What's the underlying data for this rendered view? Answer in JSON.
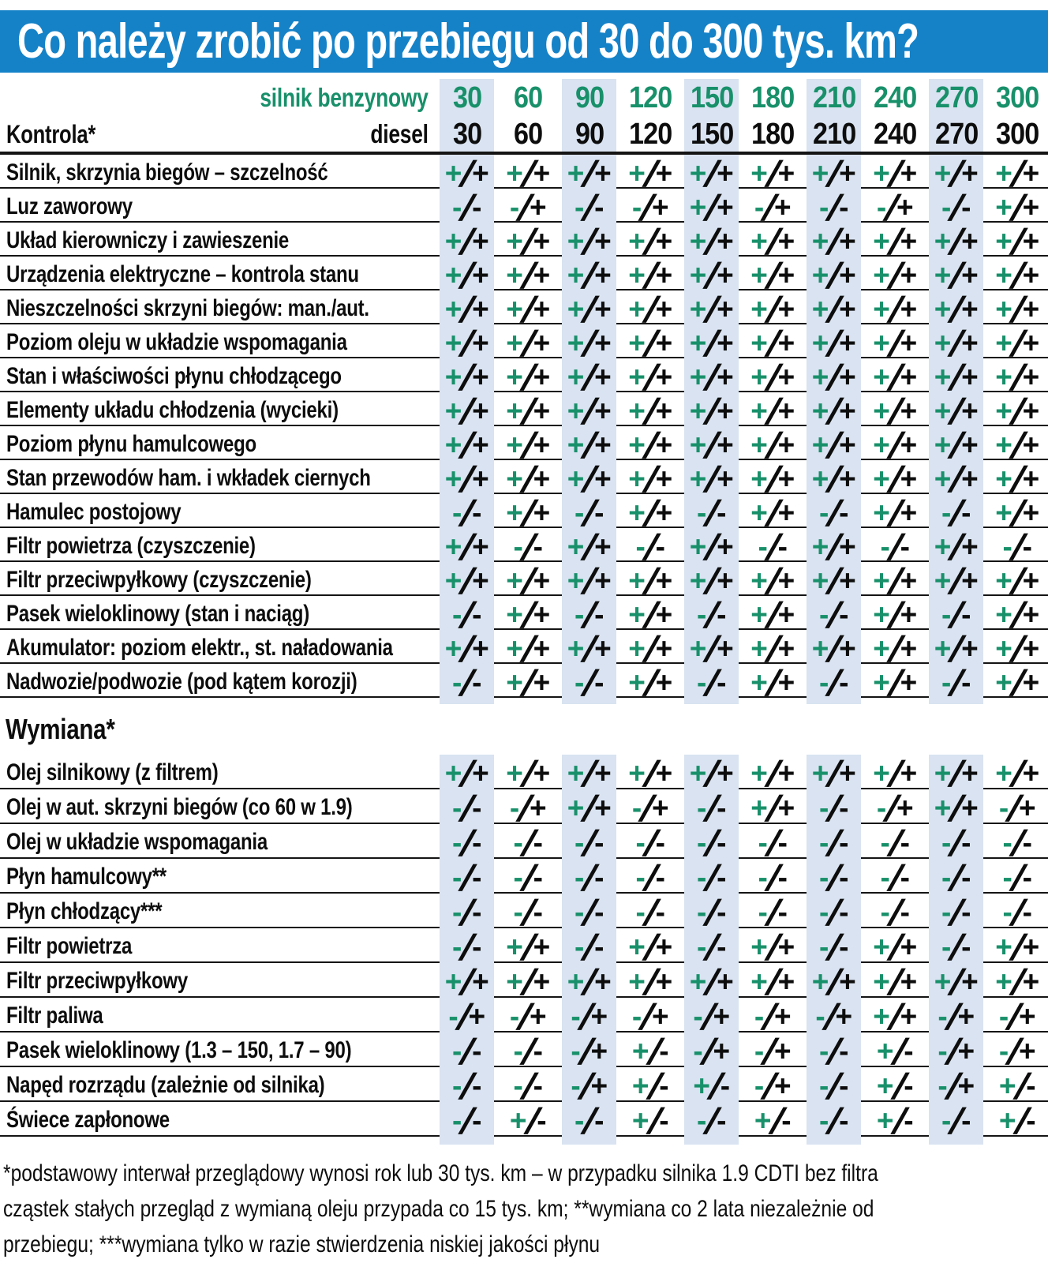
{
  "title": "Co należy zrobić po przebiegu od 30 do 300 tys. km?",
  "header": {
    "petrol_label": "silnik benzynowy",
    "diesel_label": "diesel",
    "kontrola_label": "Kontrola*",
    "mileages": [
      "30",
      "60",
      "90",
      "120",
      "150",
      "180",
      "210",
      "240",
      "270",
      "300"
    ]
  },
  "colors": {
    "title_bar": "#1582c8",
    "green": "#18906a",
    "stripe": "#d9e3f1",
    "line": "#141414",
    "text": "#0d0d0d"
  },
  "sections": {
    "kontrola": {
      "rows": [
        {
          "label": "Silnik, skrzynia biegów – szczelność",
          "values": [
            "+/+",
            "+/+",
            "+/+",
            "+/+",
            "+/+",
            "+/+",
            "+/+",
            "+/+",
            "+/+",
            "+/+"
          ]
        },
        {
          "label": "Luz zaworowy",
          "values": [
            "-/-",
            "-/+",
            "-/-",
            "-/+",
            "+/+",
            "-/+",
            "-/-",
            "-/+",
            "-/-",
            "+/+"
          ]
        },
        {
          "label": "Układ kierowniczy i zawieszenie",
          "values": [
            "+/+",
            "+/+",
            "+/+",
            "+/+",
            "+/+",
            "+/+",
            "+/+",
            "+/+",
            "+/+",
            "+/+"
          ]
        },
        {
          "label": "Urządzenia elektryczne – kontrola stanu",
          "values": [
            "+/+",
            "+/+",
            "+/+",
            "+/+",
            "+/+",
            "+/+",
            "+/+",
            "+/+",
            "+/+",
            "+/+"
          ]
        },
        {
          "label": "Nieszczelności skrzyni biegów: man./aut.",
          "values": [
            "+/+",
            "+/+",
            "+/+",
            "+/+",
            "+/+",
            "+/+",
            "+/+",
            "+/+",
            "+/+",
            "+/+"
          ]
        },
        {
          "label": "Poziom oleju w układzie wspomagania",
          "values": [
            "+/+",
            "+/+",
            "+/+",
            "+/+",
            "+/+",
            "+/+",
            "+/+",
            "+/+",
            "+/+",
            "+/+"
          ]
        },
        {
          "label": "Stan i właściwości płynu chłodzącego",
          "values": [
            "+/+",
            "+/+",
            "+/+",
            "+/+",
            "+/+",
            "+/+",
            "+/+",
            "+/+",
            "+/+",
            "+/+"
          ]
        },
        {
          "label": "Elementy układu chłodzenia (wycieki)",
          "values": [
            "+/+",
            "+/+",
            "+/+",
            "+/+",
            "+/+",
            "+/+",
            "+/+",
            "+/+",
            "+/+",
            "+/+"
          ]
        },
        {
          "label": "Poziom płynu hamulcowego",
          "values": [
            "+/+",
            "+/+",
            "+/+",
            "+/+",
            "+/+",
            "+/+",
            "+/+",
            "+/+",
            "+/+",
            "+/+"
          ]
        },
        {
          "label": "Stan przewodów ham. i wkładek ciernych",
          "values": [
            "+/+",
            "+/+",
            "+/+",
            "+/+",
            "+/+",
            "+/+",
            "+/+",
            "+/+",
            "+/+",
            "+/+"
          ]
        },
        {
          "label": "Hamulec postojowy",
          "values": [
            "-/-",
            "+/+",
            "-/-",
            "+/+",
            "-/-",
            "+/+",
            "-/-",
            "+/+",
            "-/-",
            "+/+"
          ]
        },
        {
          "label": "Filtr powietrza (czyszczenie)",
          "values": [
            "+/+",
            "-/-",
            "+/+",
            "-/-",
            "+/+",
            "-/-",
            "+/+",
            "-/-",
            "+/+",
            "-/-"
          ]
        },
        {
          "label": "Filtr przeciwpyłkowy (czyszczenie)",
          "values": [
            "+/+",
            "+/+",
            "+/+",
            "+/+",
            "+/+",
            "+/+",
            "+/+",
            "+/+",
            "+/+",
            "+/+"
          ]
        },
        {
          "label": "Pasek wieloklinowy (stan i naciąg)",
          "values": [
            "-/-",
            "+/+",
            "-/-",
            "+/+",
            "-/-",
            "+/+",
            "-/-",
            "+/+",
            "-/-",
            "+/+"
          ]
        },
        {
          "label": "Akumulator: poziom elektr., st. naładowania",
          "values": [
            "+/+",
            "+/+",
            "+/+",
            "+/+",
            "+/+",
            "+/+",
            "+/+",
            "+/+",
            "+/+",
            "+/+"
          ]
        },
        {
          "label": "Nadwozie/podwozie (pod kątem korozji)",
          "values": [
            "-/-",
            "+/+",
            "-/-",
            "+/+",
            "-/-",
            "+/+",
            "-/-",
            "+/+",
            "-/-",
            "+/+"
          ]
        }
      ]
    },
    "wymiana": {
      "label": "Wymiana*",
      "rows": [
        {
          "label": "Olej silnikowy (z filtrem)",
          "values": [
            "+/+",
            "+/+",
            "+/+",
            "+/+",
            "+/+",
            "+/+",
            "+/+",
            "+/+",
            "+/+",
            "+/+"
          ]
        },
        {
          "label": "Olej w aut. skrzyni biegów (co 60 w 1.9)",
          "values": [
            "-/-",
            "-/+",
            "+/+",
            "-/+",
            "-/-",
            "+/+",
            "-/-",
            "-/+",
            "+/+",
            "-/+"
          ]
        },
        {
          "label": "Olej w układzie wspomagania",
          "values": [
            "-/-",
            "-/-",
            "-/-",
            "-/-",
            "-/-",
            "-/-",
            "-/-",
            "-/-",
            "-/-",
            "-/-"
          ]
        },
        {
          "label": "Płyn hamulcowy**",
          "values": [
            "-/-",
            "-/-",
            "-/-",
            "-/-",
            "-/-",
            "-/-",
            "-/-",
            "-/-",
            "-/-",
            "-/-"
          ]
        },
        {
          "label": "Płyn chłodzący***",
          "values": [
            "-/-",
            "-/-",
            "-/-",
            "-/-",
            "-/-",
            "-/-",
            "-/-",
            "-/-",
            "-/-",
            "-/-"
          ]
        },
        {
          "label": "Filtr powietrza",
          "values": [
            "-/-",
            "+/+",
            "-/-",
            "+/+",
            "-/-",
            "+/+",
            "-/-",
            "+/+",
            "-/-",
            "+/+"
          ]
        },
        {
          "label": "Filtr przeciwpyłkowy",
          "values": [
            "+/+",
            "+/+",
            "+/+",
            "+/+",
            "+/+",
            "+/+",
            "+/+",
            "+/+",
            "+/+",
            "+/+"
          ]
        },
        {
          "label": "Filtr paliwa",
          "values": [
            "-/+",
            "-/+",
            "-/+",
            "-/+",
            "-/+",
            "-/+",
            "-/+",
            "+/+",
            "-/+",
            "-/+"
          ]
        },
        {
          "label": "Pasek wieloklinowy (1.3 – 150, 1.7 – 90)",
          "values": [
            "-/-",
            "-/-",
            "-/+",
            "+/-",
            "-/+",
            "-/+",
            "-/-",
            "+/-",
            "-/+",
            "-/+"
          ]
        },
        {
          "label": "Napęd rozrządu (zależnie od silnika)",
          "values": [
            "-/-",
            "-/-",
            "-/+",
            "+/-",
            "+/-",
            "-/+",
            "-/-",
            "+/-",
            "-/+",
            "+/-"
          ]
        },
        {
          "label": "Świece zapłonowe",
          "values": [
            "-/-",
            "+/-",
            "-/-",
            "+/-",
            "-/-",
            "+/-",
            "-/-",
            "+/-",
            "-/-",
            "+/-"
          ]
        }
      ]
    }
  },
  "footnote_lines": [
    "*podstawowy interwał przeglądowy wynosi rok lub 30 tys. km – w przypadku silnika 1.9 CDTI bez filtra",
    "cząstek stałych przegląd z wymianą oleju przypada co 15 tys. km; **wymiana co 2 lata niezależnie od",
    "przebiegu; ***wymiana tylko w razie stwierdzenia niskiej jakości płynu"
  ]
}
